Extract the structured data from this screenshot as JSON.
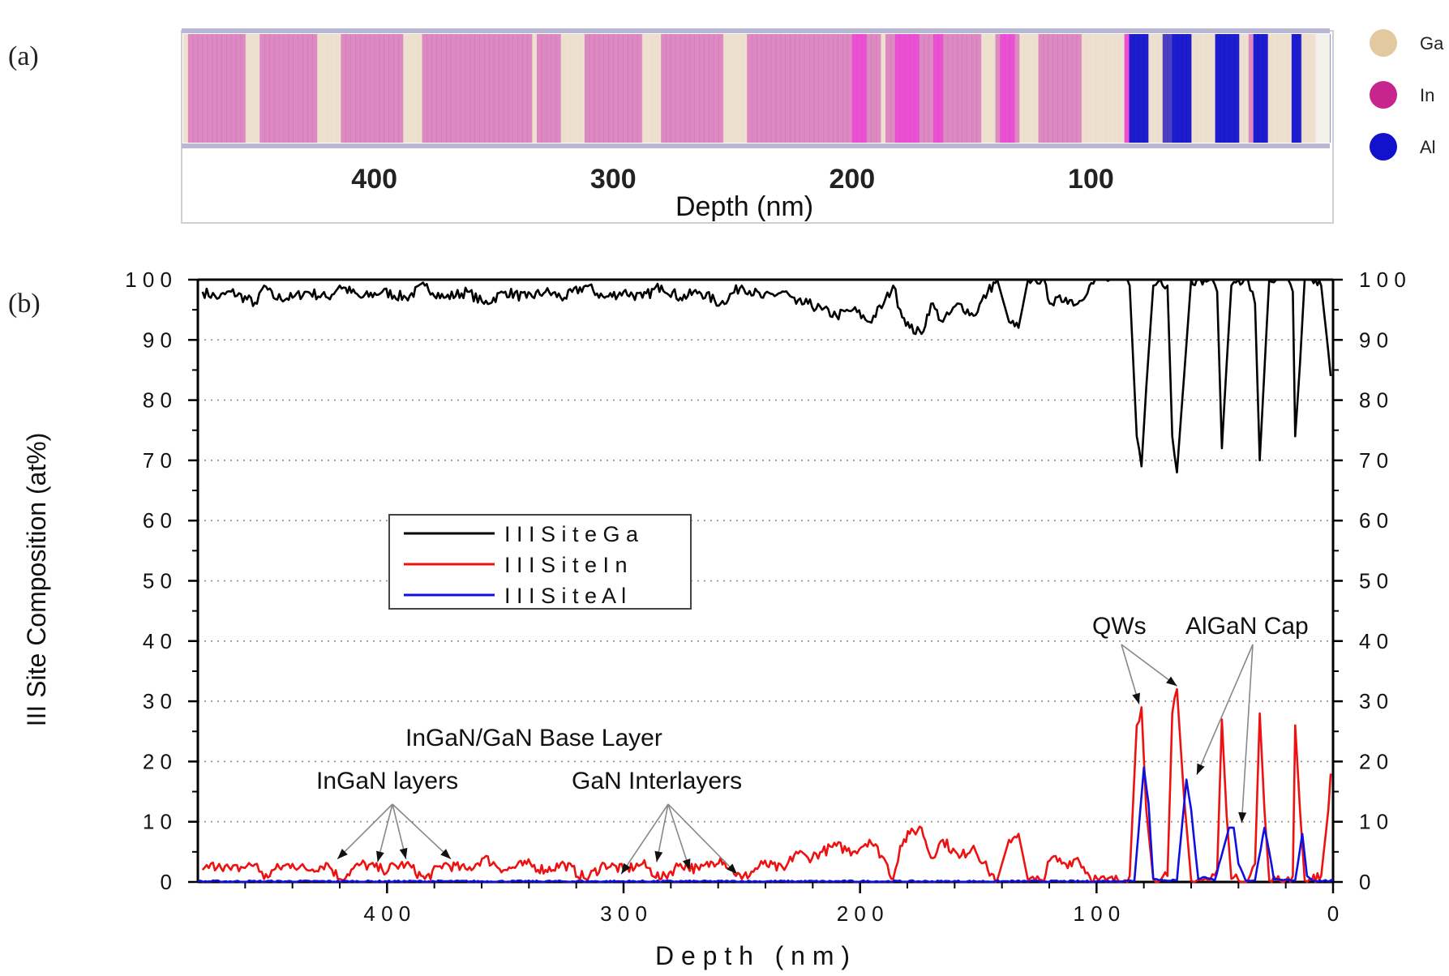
{
  "colors": {
    "ga": "#000000",
    "in": "#ee1111",
    "al": "#1010e0",
    "ga_atom": "#e2c9a0",
    "in_atom": "#c8248e",
    "al_atom": "#1212cc",
    "grid": "#8c8c8c"
  },
  "panel_a": {
    "label": "(a)",
    "axis_label": "Depth (nm)",
    "ticks": [
      "400",
      "300",
      "200",
      "100"
    ],
    "tick_values": [
      400,
      300,
      200,
      100
    ],
    "legend": [
      {
        "name": "Ga",
        "color": "#e2c9a0"
      },
      {
        "name": "In",
        "color": "#c8248e"
      },
      {
        "name": "Al",
        "color": "#1212cc"
      }
    ]
  },
  "panel_b": {
    "label": "(b)"
  },
  "chart_data": {
    "type": "line",
    "title": "",
    "xlabel": "D e p t h   ( n m )",
    "ylabel": "III Site Composition (at%)",
    "xlim": [
      480,
      0
    ],
    "ylim": [
      0,
      100
    ],
    "x_ticks": [
      400,
      300,
      200,
      100,
      0
    ],
    "x_tick_labels": [
      "4 0 0",
      "3 0 0",
      "2 0 0",
      "1 0 0",
      "0"
    ],
    "y_ticks": [
      0,
      10,
      20,
      30,
      40,
      50,
      60,
      70,
      80,
      90,
      100
    ],
    "y_tick_labels": [
      "0",
      "1 0",
      "2 0",
      "3 0",
      "4 0",
      "5 0",
      "6 0",
      "7 0",
      "8 0",
      "9 0",
      "1 0 0"
    ],
    "grid": "horizontal-dotted",
    "legend_position": "middle-left",
    "series": [
      {
        "name": "I I I   S i t e   G a",
        "color": "#000000",
        "x": [
          478,
          471,
          466,
          455,
          452,
          448,
          440,
          434,
          425,
          420,
          411,
          402,
          392,
          384,
          376,
          366,
          359,
          350,
          341,
          333,
          325,
          316,
          308,
          300,
          292,
          284,
          276,
          268,
          259,
          250,
          241,
          232,
          227,
          222,
          216,
          210,
          203,
          196,
          190,
          186,
          183,
          179,
          174,
          170,
          165,
          158,
          152,
          146,
          142,
          137,
          133,
          129,
          126,
          123,
          119,
          113,
          108,
          103,
          99,
          96,
          91,
          88,
          86,
          83,
          81,
          79,
          76,
          73,
          70,
          68,
          66,
          63,
          60,
          56,
          52,
          49,
          47,
          45,
          43,
          40,
          36,
          33,
          31,
          29,
          27,
          24,
          20,
          17,
          16,
          14,
          12,
          9,
          5,
          2,
          1
        ],
        "values": [
          98,
          97,
          98,
          96,
          99,
          97,
          97,
          98,
          97,
          99,
          97,
          98,
          97,
          99,
          97,
          98,
          96,
          98,
          97,
          98,
          97,
          99,
          97,
          98,
          97,
          99,
          97,
          98,
          96,
          99,
          97,
          98,
          96,
          96,
          95,
          94,
          95,
          93,
          96,
          99,
          95,
          92,
          91,
          96,
          93,
          96,
          94,
          98,
          100,
          93,
          92,
          100,
          100,
          100,
          96,
          97,
          96,
          99,
          100,
          100,
          100,
          100,
          99,
          74,
          69,
          82,
          99,
          100,
          99,
          74,
          68,
          84,
          100,
          100,
          100,
          98,
          72,
          86,
          99,
          100,
          100,
          96,
          70,
          85,
          100,
          100,
          100,
          98,
          74,
          86,
          100,
          100,
          99,
          88,
          84
        ]
      },
      {
        "name": "I I I   S i t e   I n",
        "color": "#ee1111",
        "x": [
          478,
          471,
          466,
          455,
          452,
          448,
          440,
          434,
          425,
          420,
          411,
          402,
          392,
          384,
          376,
          366,
          359,
          350,
          341,
          333,
          325,
          316,
          308,
          300,
          292,
          284,
          276,
          268,
          259,
          250,
          241,
          232,
          227,
          222,
          216,
          210,
          203,
          196,
          190,
          186,
          183,
          179,
          174,
          170,
          165,
          158,
          152,
          146,
          142,
          137,
          133,
          129,
          126,
          123,
          119,
          113,
          108,
          103,
          99,
          96,
          91,
          88,
          86,
          83,
          81,
          79,
          76,
          73,
          70,
          68,
          66,
          63,
          60,
          56,
          52,
          49,
          47,
          45,
          43,
          40,
          36,
          33,
          31,
          29,
          27,
          24,
          20,
          17,
          16,
          14,
          12,
          9,
          5,
          2,
          1
        ],
        "values": [
          2,
          3,
          2,
          3,
          0.5,
          2,
          3,
          2,
          3,
          0.5,
          3,
          2,
          3,
          0.5,
          3,
          2,
          4,
          2,
          3,
          2,
          3,
          0.5,
          3,
          2,
          3,
          0.5,
          3,
          2,
          4,
          0.5,
          3,
          2,
          5,
          4,
          5,
          6,
          5,
          7,
          4,
          0.5,
          6,
          8,
          9,
          4,
          7,
          4,
          6,
          2,
          0.3,
          7,
          8,
          0.3,
          0.3,
          0.3,
          4,
          3,
          4,
          1,
          0.3,
          0.3,
          0.3,
          0.3,
          1,
          26,
          29,
          12,
          0.5,
          0.3,
          1,
          28,
          32,
          14,
          0.3,
          0.3,
          0.3,
          2,
          27,
          11,
          0.5,
          0.3,
          0.3,
          3,
          28,
          12,
          0.3,
          0.3,
          0.3,
          1,
          26,
          12,
          0.3,
          0.3,
          1,
          12,
          18
        ]
      },
      {
        "name": "I I I   S i t e   A l",
        "color": "#1010e0",
        "x": [
          480,
          100,
          84,
          80,
          78,
          76,
          72,
          66,
          62,
          60,
          57,
          54,
          50,
          44,
          42,
          40,
          37,
          33,
          29,
          27,
          25,
          21,
          16,
          13,
          11,
          8,
          0
        ],
        "values": [
          0.1,
          0.1,
          0.2,
          19,
          13,
          0.5,
          0.3,
          0.3,
          17,
          12,
          0.5,
          0.8,
          0.3,
          9,
          9,
          3,
          0.3,
          0.3,
          9,
          5,
          0.4,
          0.3,
          0.3,
          8,
          1,
          0.2,
          0.2
        ]
      }
    ],
    "annotations": [
      {
        "text": "InGaN/GaN Base Layer"
      },
      {
        "text": "InGaN layers",
        "targets": [
          [
            421,
            3
          ],
          [
            404,
            2.5
          ],
          [
            392,
            3
          ],
          [
            373,
            3
          ]
        ]
      },
      {
        "text": "GaN Interlayers",
        "targets": [
          [
            301,
            0.5
          ],
          [
            286,
            2.5
          ],
          [
            272,
            1.2
          ],
          [
            252,
            0.5
          ]
        ]
      },
      {
        "text": "QWs",
        "targets": [
          [
            82,
            29
          ],
          [
            66,
            32
          ]
        ]
      },
      {
        "text": "AlGaN Cap",
        "targets": [
          [
            59,
            17
          ],
          [
            40,
            9
          ]
        ]
      }
    ]
  }
}
